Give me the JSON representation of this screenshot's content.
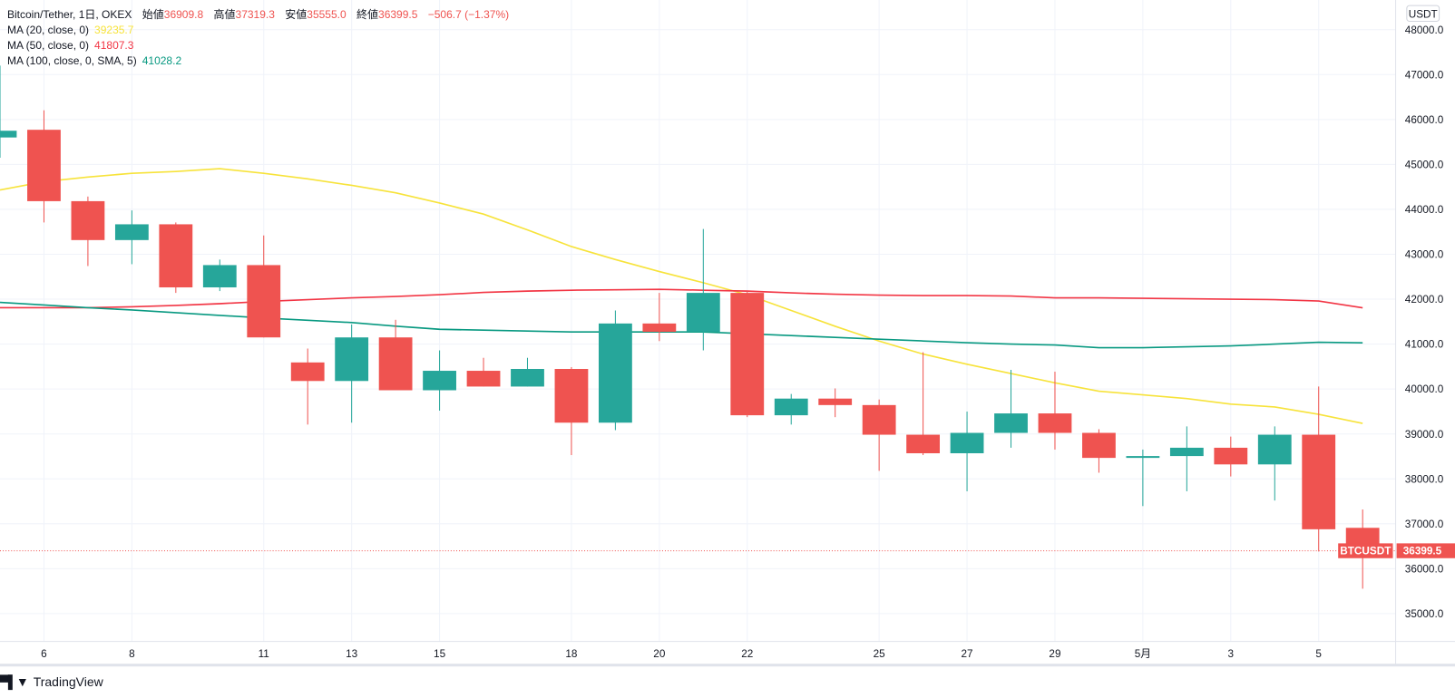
{
  "legend": {
    "symbol": "Bitcoin/Tether, 1日, OKEX",
    "open_label": "始値",
    "open": "36909.8",
    "high_label": "高値",
    "high": "37319.3",
    "low_label": "安値",
    "low": "35555.0",
    "close_label": "終値",
    "close": "36399.5",
    "change": "−506.7 (−1.37%)",
    "ma20_label": "MA (20, close, 0)",
    "ma20_value": "39235.7",
    "ma50_label": "MA (50, close, 0)",
    "ma50_value": "41807.3",
    "ma100_label": "MA (100, close, 0, SMA, 5)",
    "ma100_value": "41028.2"
  },
  "price_axis": {
    "currency": "USDT",
    "last_symbol": "BTCUSDT",
    "last_price": "36399.5"
  },
  "brand": {
    "name": "TradingView"
  },
  "colors": {
    "up": "#26a69a",
    "down": "#ef5350",
    "ma20": "#f7e33b",
    "ma50": "#f23645",
    "ma100": "#089981",
    "grid": "#f0f3fa"
  },
  "chart_data": {
    "type": "candlestick",
    "title": "Bitcoin/Tether, 1日, OKEX",
    "ylim": [
      34600,
      48300
    ],
    "yticks": [
      35000,
      36000,
      37000,
      38000,
      39000,
      40000,
      41000,
      42000,
      43000,
      44000,
      45000,
      46000,
      47000,
      48000
    ],
    "ytick_labels": [
      "35000.0",
      "36000.0",
      "37000.0",
      "38000.0",
      "39000.0",
      "40000.0",
      "41000.0",
      "42000.0",
      "43000.0",
      "44000.0",
      "45000.0",
      "46000.0",
      "47000.0",
      "48000.0"
    ],
    "xtick_labels": [
      {
        "i": 1,
        "label": "6"
      },
      {
        "i": 3,
        "label": "8"
      },
      {
        "i": 6,
        "label": "11"
      },
      {
        "i": 8,
        "label": "13"
      },
      {
        "i": 10,
        "label": "15"
      },
      {
        "i": 13,
        "label": "18"
      },
      {
        "i": 15,
        "label": "20"
      },
      {
        "i": 17,
        "label": "22"
      },
      {
        "i": 20,
        "label": "25"
      },
      {
        "i": 22,
        "label": "27"
      },
      {
        "i": 24,
        "label": "29"
      },
      {
        "i": 26,
        "label": "5月"
      },
      {
        "i": 28,
        "label": "3"
      },
      {
        "i": 30,
        "label": "5"
      }
    ],
    "candles": [
      [
        45600,
        47200,
        45150,
        45750
      ],
      [
        45771,
        46205,
        43708,
        44182
      ],
      [
        44182,
        44285,
        42738,
        43316
      ],
      [
        43316,
        43976,
        42779,
        43667
      ],
      [
        43667,
        43708,
        42140,
        42263
      ],
      [
        42263,
        42882,
        42181,
        42759
      ],
      [
        42759,
        43419,
        41149,
        41149
      ],
      [
        40592,
        40901,
        39209,
        40179
      ],
      [
        40179,
        41438,
        39251,
        41149
      ],
      [
        41149,
        41541,
        39973,
        39973
      ],
      [
        39973,
        40860,
        39519,
        40406
      ],
      [
        40406,
        40695,
        40055,
        40055
      ],
      [
        40055,
        40695,
        40055,
        40447
      ],
      [
        40447,
        40488,
        38529,
        39251
      ],
      [
        39251,
        41748,
        39086,
        41459
      ],
      [
        41459,
        42140,
        41067,
        41273
      ],
      [
        41273,
        43563,
        40860,
        42140
      ],
      [
        42140,
        42181,
        39374,
        39416
      ],
      [
        39416,
        39890,
        39209,
        39787
      ],
      [
        39787,
        40014,
        39374,
        39643
      ],
      [
        39643,
        39767,
        38178,
        38983
      ],
      [
        38983,
        40819,
        38529,
        38570
      ],
      [
        38570,
        39498,
        37724,
        39024
      ],
      [
        39024,
        40427,
        38693,
        39457
      ],
      [
        39457,
        40386,
        38652,
        39024
      ],
      [
        39024,
        39106,
        38137,
        38467
      ],
      [
        38467,
        38652,
        37394,
        38508
      ],
      [
        38508,
        39168,
        37724,
        38693
      ],
      [
        38693,
        38941,
        38054,
        38322
      ],
      [
        38322,
        39168,
        37518,
        38983
      ],
      [
        38983,
        40055,
        36383,
        36878
      ],
      [
        36910,
        37319,
        35555,
        36399.5
      ]
    ],
    "series": [
      {
        "name": "MA (20, close, 0)",
        "values": [
          44430,
          44616,
          44719,
          44802,
          44843,
          44905,
          44802,
          44678,
          44534,
          44368,
          44141,
          43894,
          43543,
          43172,
          42883,
          42615,
          42367,
          42099,
          41748,
          41397,
          41067,
          40778,
          40551,
          40345,
          40138,
          39952,
          39870,
          39787,
          39663,
          39601,
          39436,
          39235.7
        ]
      },
      {
        "name": "MA (50, close, 0)",
        "values": [
          41810,
          41810,
          41810,
          41830,
          41860,
          41900,
          41950,
          41990,
          42030,
          42060,
          42100,
          42150,
          42180,
          42200,
          42210,
          42220,
          42200,
          42180,
          42140,
          42110,
          42090,
          42080,
          42080,
          42070,
          42030,
          42030,
          42020,
          42010,
          42000,
          41990,
          41960,
          41807.3
        ]
      },
      {
        "name": "MA (100, close, 0, SMA, 5)",
        "values": [
          41930,
          41870,
          41810,
          41760,
          41700,
          41640,
          41580,
          41530,
          41480,
          41400,
          41330,
          41310,
          41290,
          41270,
          41270,
          41270,
          41270,
          41230,
          41190,
          41150,
          41110,
          41070,
          41030,
          41000,
          40980,
          40920,
          40920,
          40940,
          40960,
          41000,
          41040,
          41028.2
        ]
      }
    ],
    "last_price": 36399.5
  }
}
